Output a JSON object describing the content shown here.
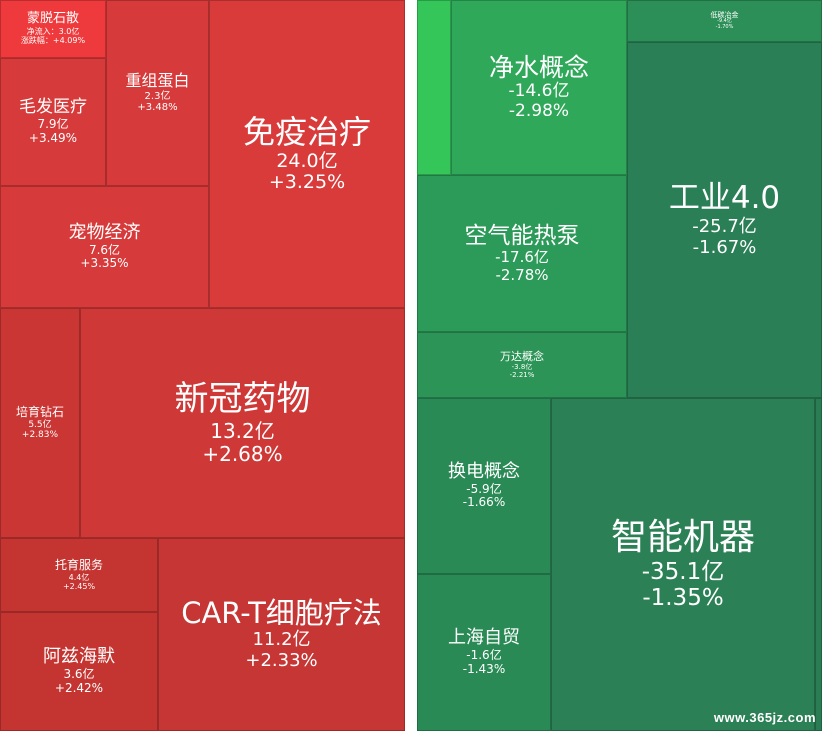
{
  "watermark": "www.365jz.com",
  "colors": {
    "red_strong": "#e3393c",
    "red": "#d63a3a",
    "red_dark": "#c43532",
    "green_bright": "#35c65a",
    "green": "#2fa85a",
    "green_mid": "#2c9a58",
    "green_dark": "#2a7f56"
  },
  "chart_data": {
    "type": "treemap",
    "left_panel": [
      {
        "name": "蒙脱石散",
        "line2": "净流入：3.0亿",
        "line3": "涨跌幅：+4.09%"
      },
      {
        "name": "重组蛋白",
        "flow": "2.3亿",
        "change": "+3.48%"
      },
      {
        "name": "毛发医疗",
        "flow": "7.9亿",
        "change": "+3.49%"
      },
      {
        "name": "免疫治疗",
        "flow": "24.0亿",
        "change": "+3.25%"
      },
      {
        "name": "宠物经济",
        "flow": "7.6亿",
        "change": "+3.35%"
      },
      {
        "name": "培育钻石",
        "flow": "5.5亿",
        "change": "+2.83%"
      },
      {
        "name": "新冠药物",
        "flow": "13.2亿",
        "change": "+2.68%"
      },
      {
        "name": "托育服务",
        "flow": "4.4亿",
        "change": "+2.45%"
      },
      {
        "name": "阿兹海默",
        "flow": "3.6亿",
        "change": "+2.42%"
      },
      {
        "name": "CAR-T细胞疗法",
        "flow": "11.2亿",
        "change": "+2.33%"
      }
    ],
    "right_panel": [
      {
        "name": "",
        "flow": "",
        "change": ""
      },
      {
        "name": "净水概念",
        "flow": "-14.6亿",
        "change": "-2.98%"
      },
      {
        "name": "低碳冶金",
        "flow": "-9.4亿",
        "change": "-1.70%"
      },
      {
        "name": "空气能热泵",
        "flow": "-17.6亿",
        "change": "-2.78%"
      },
      {
        "name": "工业4.0",
        "flow": "-25.7亿",
        "change": "-1.67%"
      },
      {
        "name": "万达概念",
        "flow": "-3.8亿",
        "change": "-2.21%"
      },
      {
        "name": "换电概念",
        "flow": "-5.9亿",
        "change": "-1.66%"
      },
      {
        "name": "智能机器",
        "flow": "-35.1亿",
        "change": "-1.35%"
      },
      {
        "name": "上海自贸",
        "flow": "-1.6亿",
        "change": "-1.43%"
      }
    ]
  }
}
